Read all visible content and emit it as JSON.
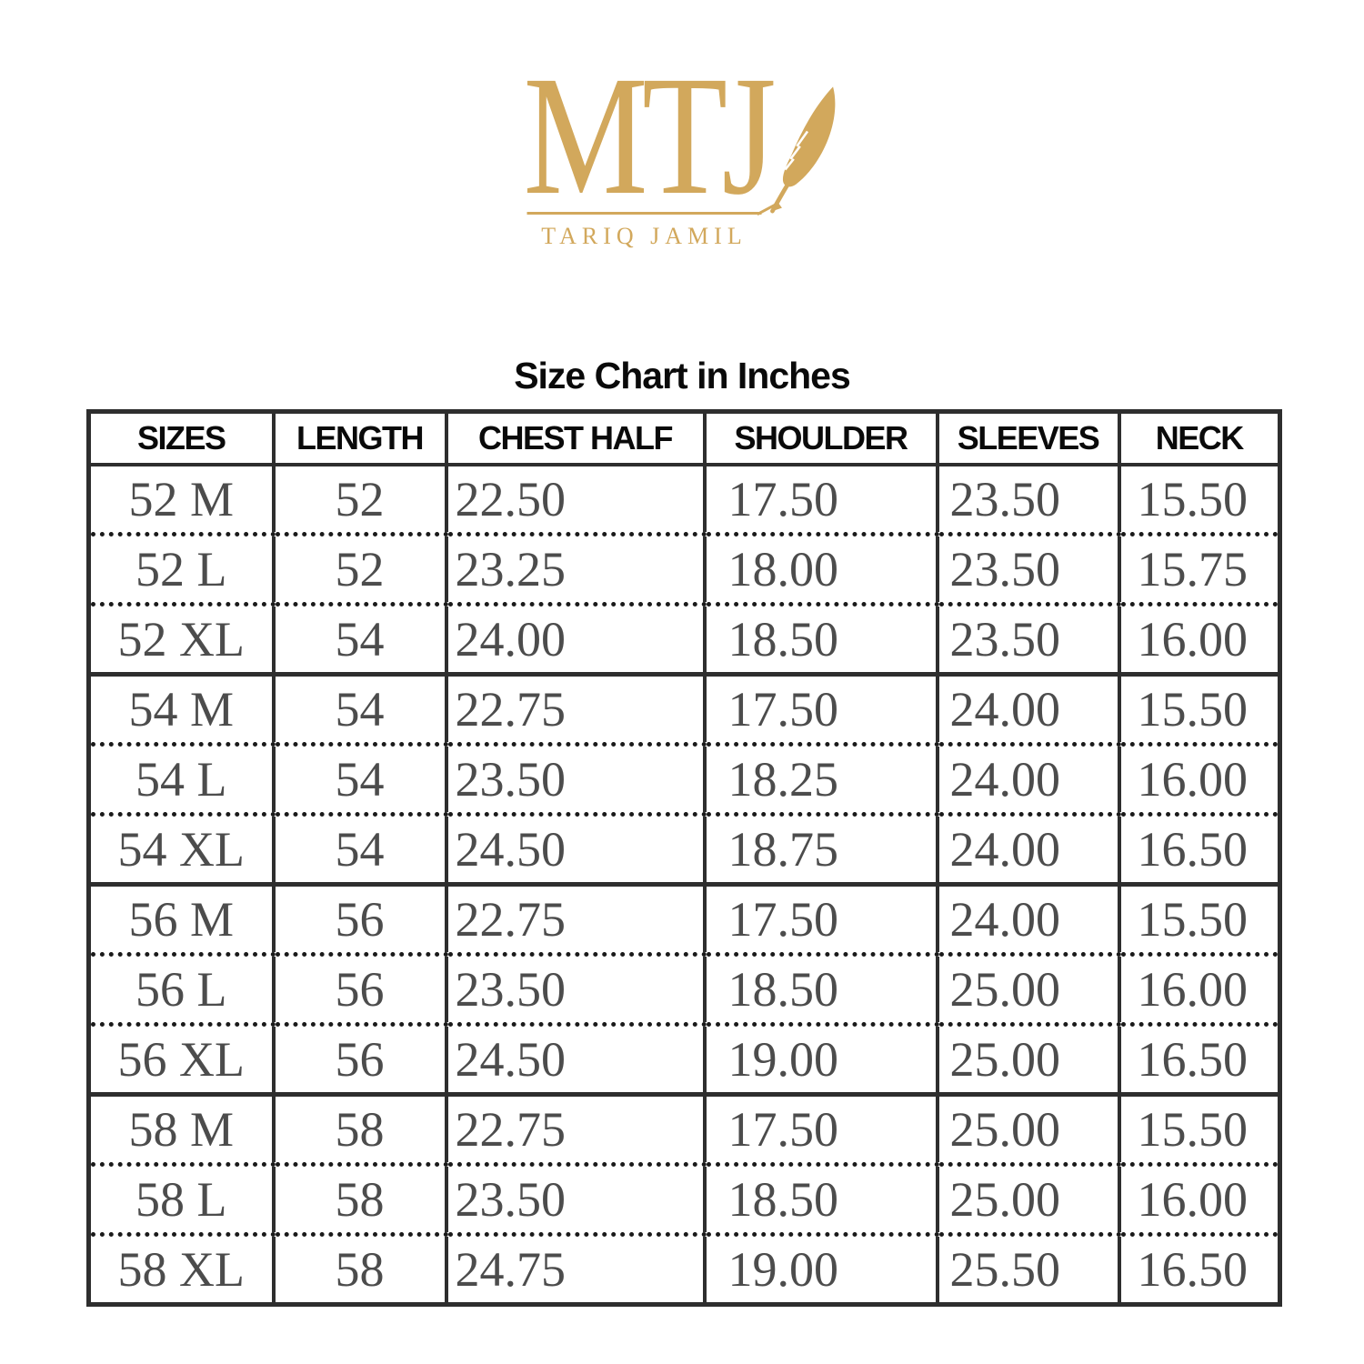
{
  "logo": {
    "monogram": "MTJ",
    "brand_name": "TARIQ JAMIL",
    "gold_color": "#d2a85c",
    "icon": "quill-feather-icon"
  },
  "title": "Size Chart in Inches",
  "chart_data": {
    "type": "table",
    "title": "Size Chart in Inches",
    "units": "inches",
    "columns": [
      "SIZES",
      "LENGTH",
      "CHEST HALF",
      "SHOULDER",
      "SLEEVES",
      "NECK"
    ],
    "column_alignments": [
      "center",
      "center",
      "left",
      "left",
      "left",
      "left"
    ],
    "rows": [
      {
        "cells": [
          "52 M",
          "52",
          "22.50",
          "17.50",
          "23.50",
          "15.50"
        ],
        "separator": "none"
      },
      {
        "cells": [
          "52 L",
          "52",
          "23.25",
          "18.00",
          "23.50",
          "15.75"
        ],
        "separator": "dotted"
      },
      {
        "cells": [
          "52 XL",
          "54",
          "24.00",
          "18.50",
          "23.50",
          "16.00"
        ],
        "separator": "dotted"
      },
      {
        "cells": [
          "54 M",
          "54",
          "22.75",
          "17.50",
          "24.00",
          "15.50"
        ],
        "separator": "solid"
      },
      {
        "cells": [
          "54 L",
          "54",
          "23.50",
          "18.25",
          "24.00",
          "16.00"
        ],
        "separator": "dotted"
      },
      {
        "cells": [
          "54 XL",
          "54",
          "24.50",
          "18.75",
          "24.00",
          "16.50"
        ],
        "separator": "dotted"
      },
      {
        "cells": [
          "56 M",
          "56",
          "22.75",
          "17.50",
          "24.00",
          "15.50"
        ],
        "separator": "solid"
      },
      {
        "cells": [
          "56 L",
          "56",
          "23.50",
          "18.50",
          "25.00",
          "16.00"
        ],
        "separator": "dotted"
      },
      {
        "cells": [
          "56 XL",
          "56",
          "24.50",
          "19.00",
          "25.00",
          "16.50"
        ],
        "separator": "dotted"
      },
      {
        "cells": [
          "58 M",
          "58",
          "22.75",
          "17.50",
          "25.00",
          "15.50"
        ],
        "separator": "solid"
      },
      {
        "cells": [
          "58 L",
          "58",
          "23.50",
          "18.50",
          "25.00",
          "16.00"
        ],
        "separator": "dotted"
      },
      {
        "cells": [
          "58 XL",
          "58",
          "24.75",
          "19.00",
          "25.50",
          "16.50"
        ],
        "separator": "dotted"
      }
    ]
  },
  "colors": {
    "table_border": "#2e2e2e",
    "data_text": "#4c4c4c",
    "header_text": "#0a0a0a",
    "dotted_separator": "#1a1a1a"
  }
}
